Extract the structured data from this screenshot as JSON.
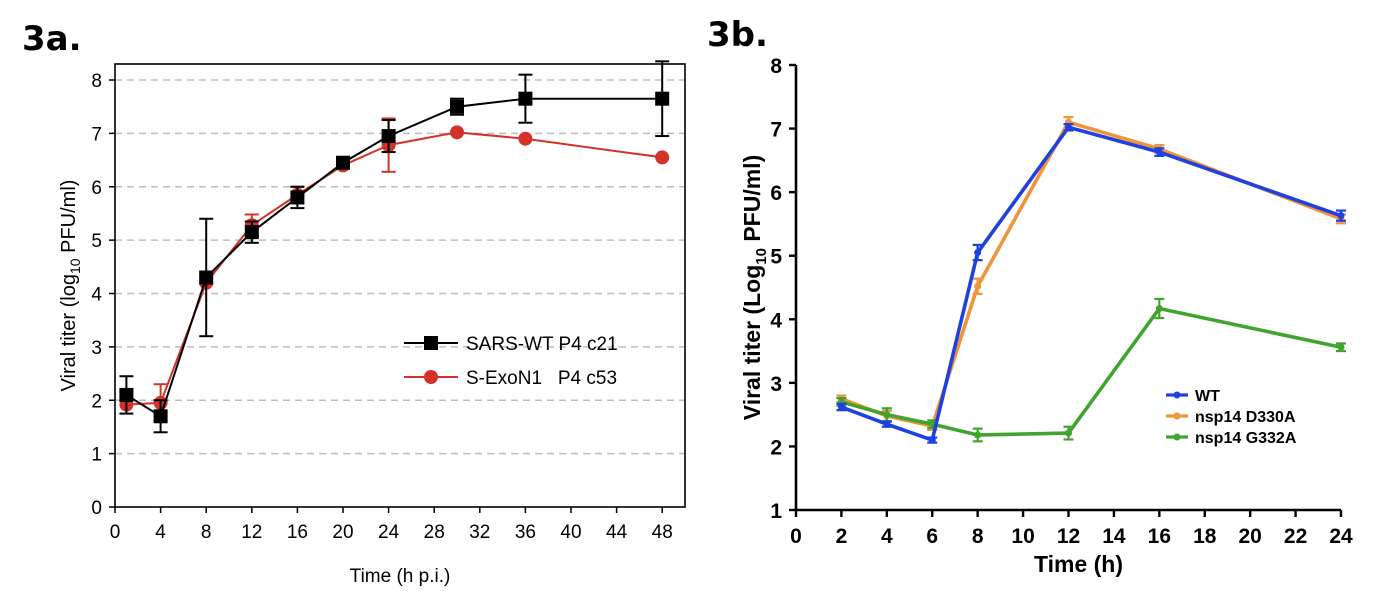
{
  "panels": {
    "a_label": "3a.",
    "b_label": "3b."
  },
  "chart_data": [
    {
      "type": "line",
      "panel": "3a.",
      "xlabel": "Time (h p.i.)",
      "ylabel_main": "Viral titer (log",
      "ylabel_sub": "10",
      "ylabel_tail": " PFU/ml)",
      "xlim": [
        0,
        50
      ],
      "ylim": [
        0,
        8.3
      ],
      "xticks": [
        0,
        4,
        8,
        12,
        16,
        20,
        24,
        28,
        32,
        36,
        40,
        44,
        48
      ],
      "yticks": [
        0,
        1,
        2,
        3,
        4,
        5,
        6,
        7,
        8
      ],
      "grid": "horizontal dashed",
      "legend_position": "right-middle",
      "series": [
        {
          "name": "SARS-WT P4 c21",
          "color": "#000000",
          "marker": "square",
          "x": [
            1,
            4,
            8,
            12,
            16,
            20,
            24,
            30,
            36,
            48
          ],
          "y": [
            2.1,
            1.7,
            4.3,
            5.15,
            5.8,
            6.45,
            6.95,
            7.5,
            7.65,
            7.65
          ],
          "err": [
            0.35,
            0.3,
            1.1,
            0.2,
            0.2,
            0.1,
            0.3,
            0.15,
            0.45,
            0.7
          ]
        },
        {
          "name": "S-ExoN1   P4 c53",
          "color": "#d2322a",
          "marker": "circle",
          "x": [
            1,
            4,
            8,
            12,
            16,
            20,
            24,
            30,
            36,
            48
          ],
          "y": [
            1.92,
            1.95,
            4.2,
            5.28,
            5.85,
            6.4,
            6.78,
            7.02,
            6.9,
            6.55
          ],
          "err": [
            0,
            0.35,
            0,
            0.2,
            0.15,
            0,
            0.5,
            0,
            0,
            0
          ]
        }
      ]
    },
    {
      "type": "line",
      "panel": "3b.",
      "xlabel": "Time (h)",
      "ylabel_main": "Viral titer (Log",
      "ylabel_sub": "10",
      "ylabel_tail": " PFU/ml)",
      "xlim": [
        0,
        24
      ],
      "ylim": [
        1,
        8
      ],
      "xticks": [
        0,
        2,
        4,
        6,
        8,
        10,
        12,
        14,
        16,
        18,
        20,
        22,
        24
      ],
      "yticks": [
        1,
        2,
        3,
        4,
        5,
        6,
        7,
        8
      ],
      "grid": "off",
      "legend_position": "right-lower",
      "series": [
        {
          "name": "nsp14 D330A",
          "color": "#f0943a",
          "x": [
            2,
            4,
            6,
            8,
            12,
            16,
            24
          ],
          "y": [
            2.75,
            2.48,
            2.32,
            4.52,
            7.1,
            6.68,
            5.58
          ],
          "err": [
            0.05,
            0.08,
            0.06,
            0.12,
            0.08,
            0.06,
            0.07
          ]
        },
        {
          "name": "nsp14 G332A",
          "color": "#41a431",
          "x": [
            2,
            4,
            6,
            8,
            12,
            16,
            24
          ],
          "y": [
            2.7,
            2.5,
            2.35,
            2.18,
            2.21,
            4.17,
            3.56
          ],
          "err": [
            0.06,
            0.1,
            0.06,
            0.1,
            0.1,
            0.15,
            0.06
          ]
        },
        {
          "name": "WT",
          "color": "#2040e0",
          "x": [
            2,
            4,
            6,
            8,
            12,
            16,
            24
          ],
          "y": [
            2.62,
            2.35,
            2.1,
            5.05,
            7.02,
            6.63,
            5.63
          ],
          "err": [
            0.05,
            0.04,
            0.04,
            0.12,
            0.05,
            0.06,
            0.08
          ]
        }
      ],
      "legend_order": [
        "WT",
        "nsp14 D330A",
        "nsp14 G332A"
      ]
    }
  ]
}
